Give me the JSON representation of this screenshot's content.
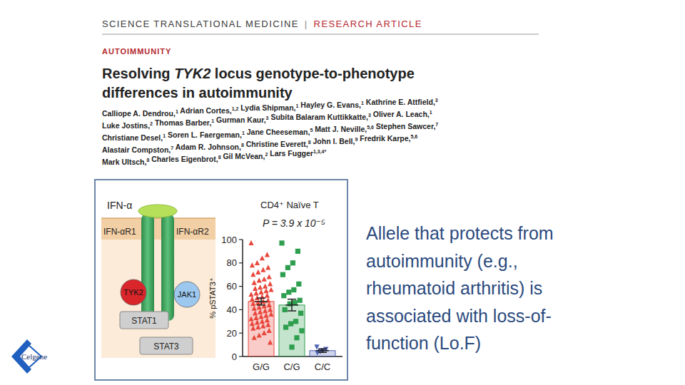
{
  "header": {
    "journal": "SCIENCE TRANSLATIONAL MEDICINE",
    "separator": "|",
    "article_type": "RESEARCH ARTICLE",
    "section": "AUTOIMMUNITY"
  },
  "title": [
    [
      {
        "text": "Resolving "
      },
      {
        "text": "TYK2",
        "italic": true
      },
      {
        "text": " locus genotype-to-phenotype"
      }
    ],
    [
      {
        "text": "differences in autoimmunity"
      }
    ]
  ],
  "authors": [
    [
      {
        "name": "Calliope A. Dendrou,",
        "affil": "1"
      },
      {
        "name": " Adrian Cortes,",
        "affil": "1,2"
      },
      {
        "name": " Lydia Shipman,",
        "affil": "1"
      },
      {
        "name": " Hayley G. Evans,",
        "affil": "1"
      },
      {
        "name": " Kathrine E. Attfield,",
        "affil": "3"
      }
    ],
    [
      {
        "name": "Luke Jostins,",
        "affil": "2"
      },
      {
        "name": " Thomas Barber,",
        "affil": "1"
      },
      {
        "name": " Gurman Kaur,",
        "affil": "3"
      },
      {
        "name": " Subita Balaram Kuttikkatte,",
        "affil": "3"
      },
      {
        "name": " Oliver A. Leach,",
        "affil": "1"
      }
    ],
    [
      {
        "name": "Christiane Desel,",
        "affil": "1"
      },
      {
        "name": " Soren L. Faergeman,",
        "affil": "1"
      },
      {
        "name": " Jane Cheeseman,",
        "affil": "5"
      },
      {
        "name": " Matt J. Neville,",
        "affil": "5,6"
      },
      {
        "name": " Stephen Sawcer,",
        "affil": "7"
      }
    ],
    [
      {
        "name": "Alastair Compston,",
        "affil": "7"
      },
      {
        "name": " Adam R. Johnson,",
        "affil": "8"
      },
      {
        "name": " Christine Everett,",
        "affil": "8"
      },
      {
        "name": " John I. Bell,",
        "affil": "9"
      },
      {
        "name": " Fredrik Karpe,",
        "affil": "5,6"
      }
    ],
    [
      {
        "name": "Mark Ultsch,",
        "affil": "8"
      },
      {
        "name": " Charles Eigenbrot,",
        "affil": "8"
      },
      {
        "name": " Gil McVean,",
        "affil": "2"
      },
      {
        "name": " Lars Fugger",
        "affil": "1,3,4*"
      }
    ]
  ],
  "diagram": {
    "ligand": "IFN-α",
    "receptors": [
      "IFN-αR1",
      "IFN-αR2"
    ],
    "kinases": [
      "TYK2",
      "JAK1"
    ],
    "stats": [
      "STAT1",
      "STAT3"
    ]
  },
  "chart_data": {
    "type": "bar",
    "title": "CD4⁺ Naïve T",
    "annotation": "P = 3.9 x 10⁻⁵",
    "y_label": "% pSTAT3⁺",
    "categories": [
      "G/G",
      "C/G",
      "C/C"
    ],
    "values": [
      47,
      44,
      5
    ],
    "errors": [
      3,
      5,
      1.5
    ],
    "points": [
      [
        97,
        87,
        84,
        80,
        78,
        76,
        74,
        72,
        70,
        68,
        66,
        65,
        63,
        62,
        60,
        59,
        58,
        57,
        56,
        55,
        54,
        53,
        52,
        51,
        50,
        49,
        48,
        47,
        46,
        45,
        44,
        43,
        42,
        41,
        40,
        39,
        38,
        37,
        36,
        35,
        34,
        33,
        32,
        31,
        30,
        29,
        28,
        27,
        26,
        25,
        24,
        22,
        20,
        18,
        16,
        12
      ],
      [
        97,
        90,
        80,
        76,
        70,
        62,
        57,
        55,
        52,
        48,
        46,
        45,
        40,
        37,
        30,
        28,
        25,
        22,
        16,
        8
      ],
      [
        8,
        6,
        5,
        4,
        3
      ]
    ],
    "colors": [
      "#e8473c",
      "#2e9e4f",
      "#4f63b3"
    ],
    "ylim": [
      0,
      100
    ],
    "yticks": [
      0,
      20,
      40,
      60,
      80,
      100
    ],
    "grid": false
  },
  "caption": [
    "Allele that protects from",
    "autoimmunity (e.g.,",
    "rheumatoid arthritis) is",
    "associated with loss-of-",
    "function (Lo.F)"
  ],
  "logo": "Celgene"
}
